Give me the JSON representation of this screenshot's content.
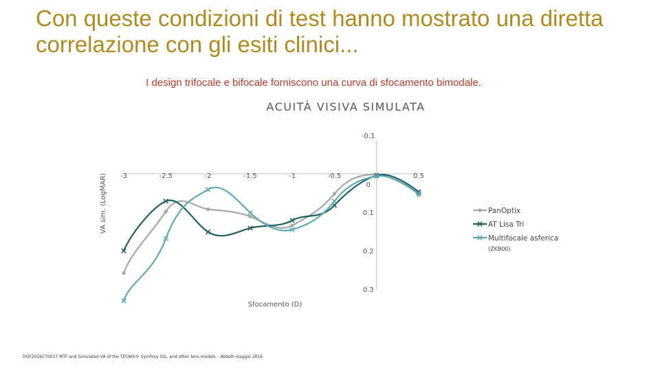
{
  "slide": {
    "title": "Con queste condizioni di test hanno mostrato una diretta correlazione con gli esiti clinici...",
    "subtitle": "I design trifocale e bifocale forniscono una curva di sfocamento bimodale.",
    "footer": "DOF2016CT0037 MTF and Simulated VA of the TECNIS® Symfony IOL, and other lens models – Abbott maggio 2016"
  },
  "chart_data": {
    "type": "line",
    "title": "ACUITÀ VISIVA SIMULATA",
    "xlabel": "Sfocamento (D)",
    "ylabel": "VA sim. (LogMAR)",
    "x": [
      -3,
      -2.5,
      -2,
      -1.5,
      -1,
      -0.5,
      0,
      0.5
    ],
    "x_tick_labels": [
      "-3",
      "-2.5",
      "-2",
      "-1.5",
      "-1",
      "-0.5",
      "0",
      "0.5"
    ],
    "y_tick_labels": [
      "-0.1",
      "0",
      "0.1",
      "0.2",
      "0.3"
    ],
    "y_ticks": [
      -0.1,
      0,
      0.1,
      0.2,
      0.3
    ],
    "xlim": [
      -3,
      0.5
    ],
    "ylim": [
      -0.1,
      0.3
    ],
    "y_inverted": true,
    "legend_position": "right",
    "series": [
      {
        "name": "PanOptix",
        "color": "#a6a6a6",
        "marker": "circle",
        "values": [
          0.258,
          0.098,
          0.092,
          0.111,
          0.134,
          0.052,
          0.002,
          0.055
        ]
      },
      {
        "name": "AT Lisa Tri",
        "color": "#1f5f5f",
        "marker": "x",
        "values": [
          0.2,
          0.071,
          0.151,
          0.141,
          0.121,
          0.082,
          0.004,
          0.047
        ]
      },
      {
        "name": "Multifocale asferica",
        "note": "(ZKB00)",
        "color": "#5aa9b5",
        "marker": "x",
        "values": [
          0.33,
          0.168,
          0.041,
          0.101,
          0.145,
          0.071,
          0.006,
          0.052
        ]
      }
    ]
  }
}
